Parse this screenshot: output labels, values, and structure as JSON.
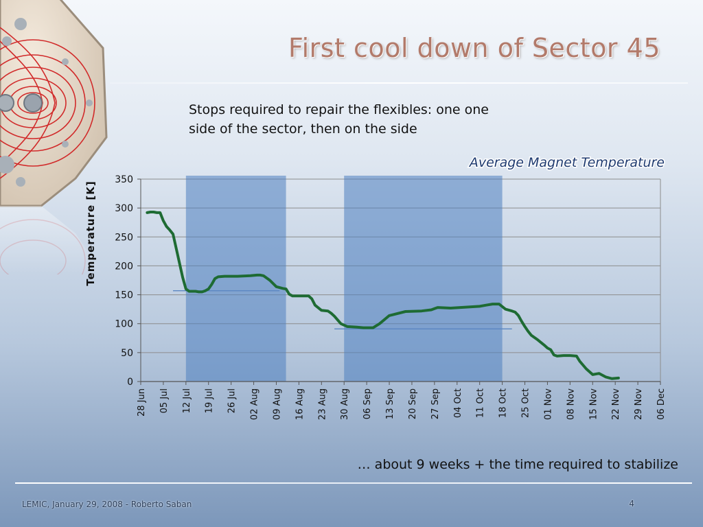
{
  "slide": {
    "title": "First cool down of Sector 45",
    "subtitle": "Stops required to repair the flexibles: one one side of the sector, then on the side",
    "note": "… about 9 weeks + the time required to stabilize",
    "footer": "LEMIC, January 29, 2008 - Roberto Saban",
    "page_number": "4"
  },
  "chart_data": {
    "type": "line",
    "title": "Average Magnet Temperature",
    "xlabel": "",
    "ylabel": "Temperature [K]",
    "ylim": [
      0,
      350
    ],
    "yticks": [
      0,
      50,
      100,
      150,
      200,
      250,
      300,
      350
    ],
    "x_tick_labels": [
      "28 Jun",
      "05 Jul",
      "12 Jul",
      "19 Jul",
      "26 Jul",
      "02 Aug",
      "09 Aug",
      "16 Aug",
      "23 Aug",
      "30 Aug",
      "06 Sep",
      "13 Sep",
      "20 Sep",
      "27 Sep",
      "04 Oct",
      "11 Oct",
      "18 Oct",
      "25 Oct",
      "01 Nov",
      "08 Nov",
      "15 Nov",
      "22 Nov",
      "29 Nov",
      "06 Dec"
    ],
    "xlim": [
      "2007-06-28",
      "2007-12-06"
    ],
    "grid": true,
    "shaded_periods": [
      {
        "start": "2007-07-12",
        "end": "2007-08-12"
      },
      {
        "start": "2007-08-30",
        "end": "2007-10-18"
      }
    ],
    "reference_lines": [
      {
        "x_start": "2007-07-08",
        "x_end": "2007-08-10",
        "y": 157
      },
      {
        "x_start": "2007-08-27",
        "x_end": "2007-10-21",
        "y": 91
      }
    ],
    "colors": {
      "line": "#1e6b33",
      "shaded": "#4f7fbf",
      "reference": "#5a86c2"
    },
    "series": [
      {
        "x": [
          "2007-06-30",
          "2007-07-01",
          "2007-07-02",
          "2007-07-03",
          "2007-07-04",
          "2007-07-05",
          "2007-07-06",
          "2007-07-07",
          "2007-07-08",
          "2007-07-09",
          "2007-07-10",
          "2007-07-11",
          "2007-07-12",
          "2007-07-13",
          "2007-07-14",
          "2007-07-15",
          "2007-07-16",
          "2007-07-17",
          "2007-07-18",
          "2007-07-19",
          "2007-07-20",
          "2007-07-21",
          "2007-07-22",
          "2007-07-24",
          "2007-07-28",
          "2007-08-01",
          "2007-08-03",
          "2007-08-04",
          "2007-08-05",
          "2007-08-07",
          "2007-08-09",
          "2007-08-11",
          "2007-08-12",
          "2007-08-13",
          "2007-08-14",
          "2007-08-15",
          "2007-08-18",
          "2007-08-19",
          "2007-08-20",
          "2007-08-21",
          "2007-08-23",
          "2007-08-25",
          "2007-08-26",
          "2007-08-27",
          "2007-08-29",
          "2007-08-31",
          "2007-09-03",
          "2007-09-05",
          "2007-09-08",
          "2007-09-10",
          "2007-09-13",
          "2007-09-18",
          "2007-09-23",
          "2007-09-26",
          "2007-09-27",
          "2007-09-28",
          "2007-10-02",
          "2007-10-08",
          "2007-10-11",
          "2007-10-13",
          "2007-10-15",
          "2007-10-17",
          "2007-10-19",
          "2007-10-21",
          "2007-10-22",
          "2007-10-23",
          "2007-10-24",
          "2007-10-25",
          "2007-10-26",
          "2007-10-27",
          "2007-10-29",
          "2007-10-31",
          "2007-11-01",
          "2007-11-02",
          "2007-11-03",
          "2007-11-04",
          "2007-11-06",
          "2007-11-08",
          "2007-11-10",
          "2007-11-11",
          "2007-11-13",
          "2007-11-15",
          "2007-11-17",
          "2007-11-19",
          "2007-11-21",
          "2007-11-23"
        ],
        "values": [
          292,
          293,
          293,
          292,
          292,
          278,
          268,
          262,
          255,
          230,
          205,
          180,
          160,
          156,
          156,
          156,
          155,
          155,
          157,
          160,
          168,
          178,
          181,
          182,
          182,
          183,
          184,
          184,
          183,
          175,
          164,
          161,
          160,
          151,
          148,
          148,
          148,
          148,
          143,
          132,
          123,
          122,
          118,
          113,
          100,
          95,
          94,
          93,
          93,
          100,
          114,
          121,
          122,
          124,
          126,
          128,
          127,
          129,
          130,
          132,
          134,
          134,
          125,
          122,
          120,
          114,
          104,
          95,
          87,
          80,
          72,
          63,
          58,
          55,
          46,
          44,
          45,
          45,
          44,
          35,
          22,
          12,
          14,
          8,
          5,
          6
        ]
      }
    ]
  }
}
